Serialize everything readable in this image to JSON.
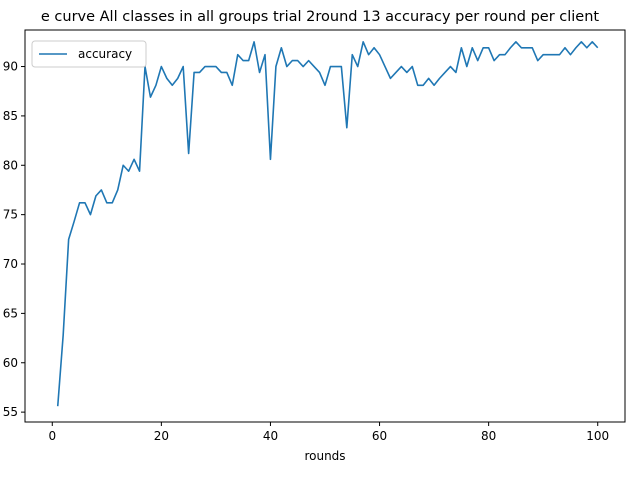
{
  "chart_data": {
    "type": "line",
    "title": "e curve All classes in all groups trial 2round 13 accuracy per round per client",
    "xlabel": "rounds",
    "ylabel": "",
    "xlim": [
      -5,
      105
    ],
    "ylim": [
      54,
      93.7
    ],
    "xticks": [
      0,
      20,
      40,
      60,
      80,
      100
    ],
    "yticks": [
      55,
      60,
      65,
      70,
      75,
      80,
      85,
      90
    ],
    "ytick_labels": [
      "55",
      "60",
      "65",
      "70",
      "75",
      "80",
      "85",
      "90"
    ],
    "legend": {
      "position": "top-left"
    },
    "grid": false,
    "color": "#1f77b4",
    "series": [
      {
        "name": "accuracy",
        "x": [
          1,
          2,
          3,
          4,
          5,
          6,
          7,
          8,
          9,
          10,
          11,
          12,
          13,
          14,
          15,
          16,
          17,
          18,
          19,
          20,
          21,
          22,
          23,
          24,
          25,
          26,
          27,
          28,
          29,
          30,
          31,
          32,
          33,
          34,
          35,
          36,
          37,
          38,
          39,
          40,
          41,
          42,
          43,
          44,
          45,
          46,
          47,
          48,
          49,
          50,
          51,
          52,
          53,
          54,
          55,
          56,
          57,
          58,
          59,
          60,
          61,
          62,
          63,
          64,
          65,
          66,
          67,
          68,
          69,
          70,
          71,
          72,
          73,
          74,
          75,
          76,
          77,
          78,
          79,
          80,
          81,
          82,
          83,
          84,
          85,
          86,
          87,
          88,
          89,
          90,
          91,
          92,
          93,
          94,
          95,
          96,
          97,
          98,
          99,
          100
        ],
        "values": [
          55.6,
          62.8,
          72.5,
          74.3,
          76.2,
          76.2,
          75.0,
          76.9,
          77.5,
          76.2,
          76.2,
          77.5,
          80.0,
          79.4,
          80.6,
          79.4,
          90.0,
          86.9,
          88.1,
          90.0,
          88.8,
          88.1,
          88.8,
          90.0,
          81.2,
          89.4,
          89.4,
          90.0,
          90.0,
          90.0,
          89.4,
          89.4,
          88.1,
          91.2,
          90.6,
          90.6,
          92.5,
          89.4,
          91.2,
          80.6,
          90.0,
          91.9,
          90.0,
          90.6,
          90.6,
          90.0,
          90.6,
          90.0,
          89.4,
          88.1,
          90.0,
          90.0,
          90.0,
          83.8,
          91.2,
          90.0,
          92.5,
          91.2,
          91.9,
          91.2,
          90.0,
          88.8,
          89.4,
          90.0,
          89.4,
          90.0,
          88.1,
          88.1,
          88.8,
          88.1,
          88.8,
          89.4,
          90.0,
          89.4,
          91.9,
          90.0,
          91.9,
          90.6,
          91.9,
          91.9,
          90.6,
          91.2,
          91.2,
          91.9,
          92.5,
          91.9,
          91.9,
          91.9,
          90.6,
          91.2,
          91.2,
          91.2,
          91.2,
          91.9,
          91.2,
          91.9,
          92.5,
          91.9,
          92.5,
          91.9
        ]
      }
    ]
  }
}
